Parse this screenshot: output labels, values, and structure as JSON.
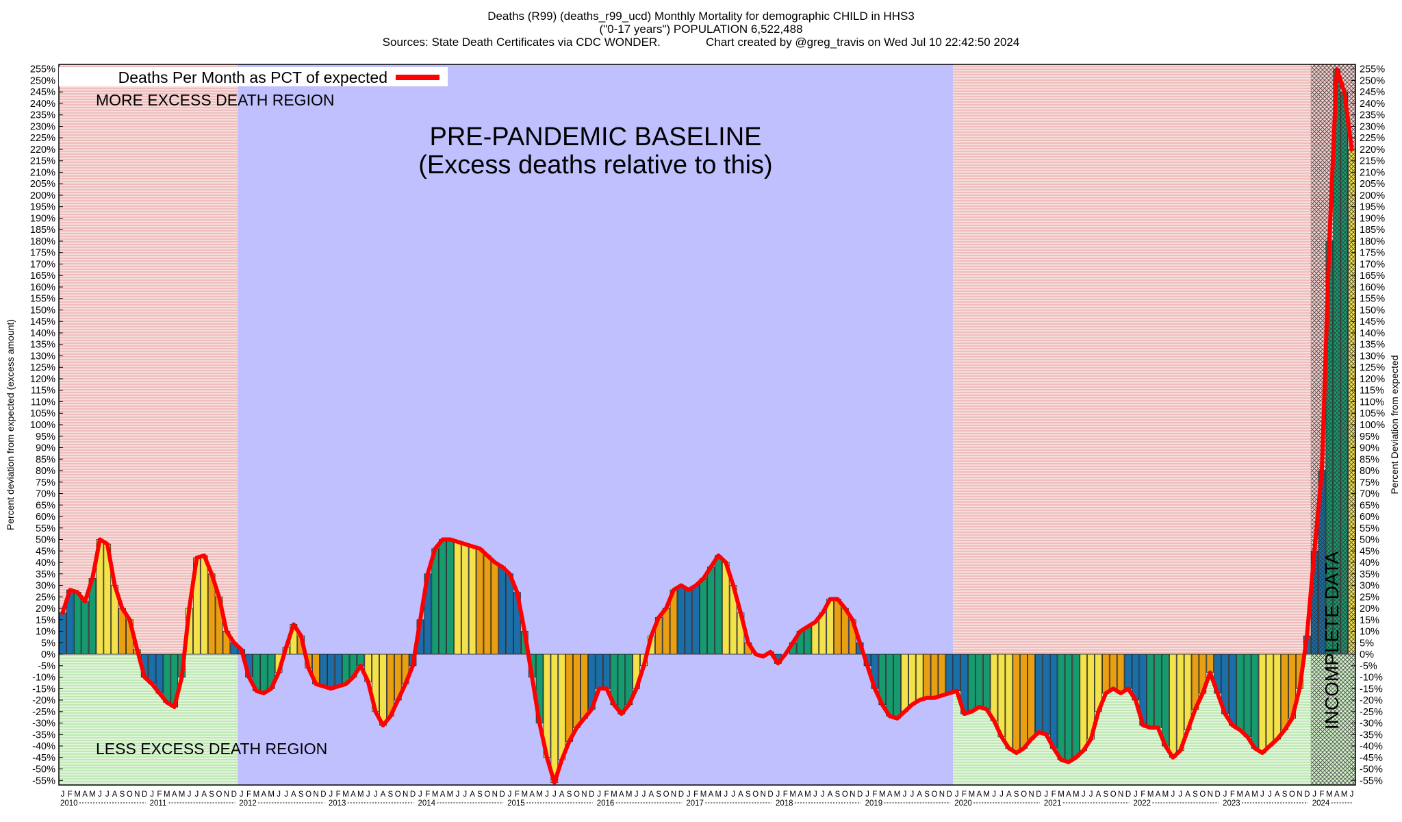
{
  "header": {
    "title_line1": "Deaths (R99) (deaths_r99_ucd) Monthly Mortality for demographic CHILD in HHS3",
    "title_line2": "(\"0-17 years\") POPULATION 6,522,488",
    "title_line3": "Sources: State Death Certificates via CDC WONDER.              Chart created by @greg_travis on Wed Jul 10 22:42:50 2024"
  },
  "chart_data": {
    "type": "bar",
    "ylabel_left": "Percent deviation from expected (excess amount)",
    "ylabel_right": "Percent Deviation from expected",
    "ylim": [
      -57,
      257
    ],
    "ytick_step": 5,
    "legend": {
      "label": "Deaths Per Month as PCT of expected",
      "position": "top-left",
      "color": "#ff0000"
    },
    "annotations": {
      "baseline_title": "PRE-PANDEMIC BASELINE",
      "baseline_subtitle": "(Excess deaths relative to this)",
      "more_region": "MORE EXCESS DEATH REGION",
      "less_region": "LESS EXCESS DEATH REGION",
      "incomplete": "INCOMPLETE DATA"
    },
    "month_letters": [
      "J",
      "F",
      "M",
      "A",
      "M",
      "J",
      "J",
      "A",
      "S",
      "O",
      "N",
      "D"
    ],
    "years": [
      "2010",
      "2011",
      "2012",
      "2013",
      "2014",
      "2015",
      "2016",
      "2017",
      "2018",
      "2019",
      "2020",
      "2021",
      "2022",
      "2023",
      "2024"
    ],
    "start": "2010-01",
    "end": "2024-06",
    "baseline_period": [
      "2012-01",
      "2019-12"
    ],
    "incomplete_period": [
      "2024-01",
      "2024-06"
    ],
    "season_colors": {
      "winter": "#1a6fa8",
      "spring": "#169a6f",
      "summer": "#f3e24a",
      "fall": "#e8a012"
    },
    "region_colors": {
      "pre_above": "#f2c6c4",
      "pre_below": "#c8ecc0",
      "baseline": "#c0c0ff",
      "post_above": "#f2c6c4",
      "post_below": "#c8ecc0",
      "line": "#ff1a1a"
    },
    "values": [
      18,
      28,
      27,
      23,
      33,
      50,
      48,
      30,
      20,
      15,
      2,
      -10,
      -13,
      -17,
      -21,
      -23,
      -10,
      20,
      42,
      43,
      35,
      25,
      10,
      5,
      2,
      -10,
      -16,
      -17,
      -15,
      -8,
      3,
      13,
      8,
      -6,
      -13,
      -14,
      -15,
      -14,
      -13,
      -10,
      -5,
      -12,
      -25,
      -31,
      -27,
      -20,
      -13,
      -5,
      15,
      35,
      46,
      50,
      50,
      49,
      48,
      47,
      46,
      43,
      40,
      38,
      35,
      27,
      10,
      -10,
      -30,
      -45,
      -56,
      -46,
      -38,
      -32,
      -28,
      -24,
      -15,
      -15,
      -22,
      -26,
      -22,
      -15,
      -5,
      8,
      16,
      20,
      28,
      30,
      28,
      30,
      33,
      38,
      43,
      40,
      30,
      18,
      5,
      0,
      -1,
      1,
      -4,
      0,
      5,
      10,
      12,
      14,
      18,
      24,
      24,
      20,
      15,
      5,
      -5,
      -15,
      -22,
      -27,
      -28,
      -25,
      -22,
      -20,
      -19,
      -19,
      -18,
      -17,
      -16,
      -26,
      -25,
      -23,
      -24,
      -29,
      -36,
      -41,
      -43,
      -41,
      -37,
      -34,
      -35,
      -41,
      -46,
      -47,
      -45,
      -42,
      -37,
      -25,
      -17,
      -15,
      -17,
      -15,
      -20,
      -31,
      -32,
      -32,
      -40,
      -45,
      -42,
      -33,
      -24,
      -17,
      -8,
      -17,
      -26,
      -31,
      -33,
      -36,
      -41,
      -43,
      -40,
      -37,
      -33,
      -28,
      -15,
      8,
      45,
      80,
      180,
      255,
      245,
      220
    ]
  }
}
